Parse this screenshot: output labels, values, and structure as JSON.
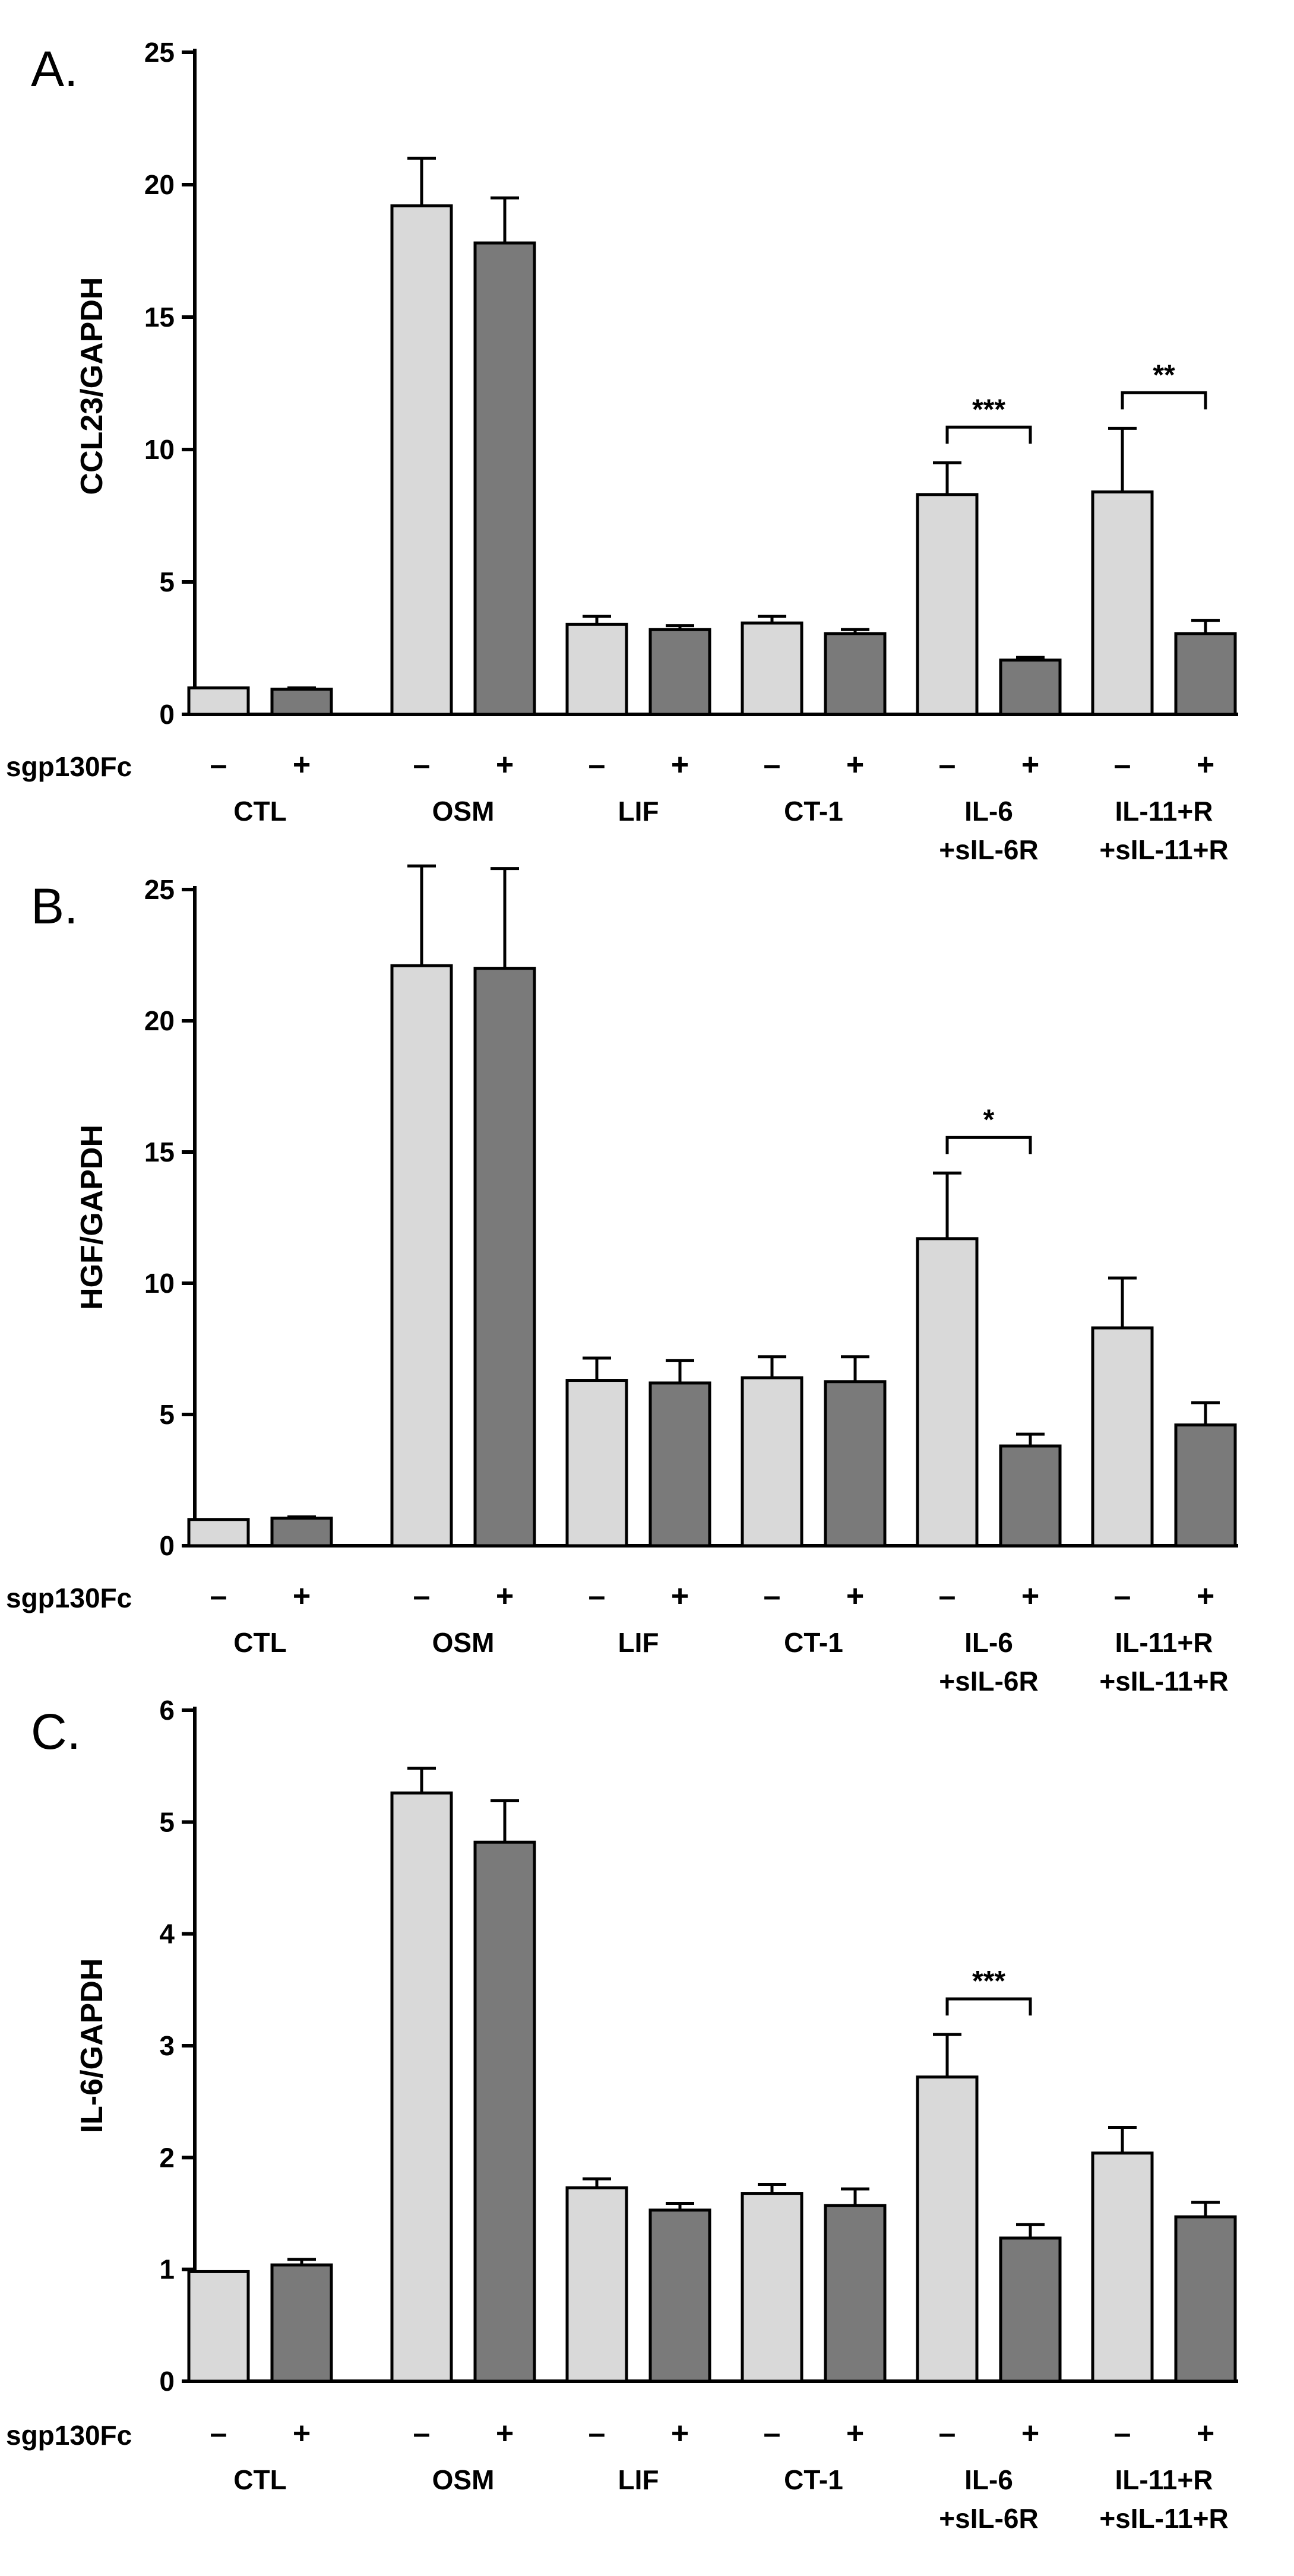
{
  "colors": {
    "minus_bar": "#d9d9d9",
    "plus_bar": "#7a7a7a",
    "stroke": "#000000",
    "background": "#ffffff"
  },
  "treatment_row_label": "sgp130Fc",
  "sign_labels": {
    "minus": "–",
    "plus": "+"
  },
  "chart_data": [
    {
      "type": "bar",
      "panel_label": "A.",
      "ylabel": "CCL23/GAPDH",
      "ylim": [
        0,
        25
      ],
      "yticks": [
        "0",
        "5",
        "10",
        "15",
        "20",
        "25"
      ],
      "groups": [
        {
          "label_lines": [
            "CTL"
          ],
          "minus": {
            "value": 1.0,
            "error": 0
          },
          "plus": {
            "value": 0.95,
            "error": 0.05
          }
        },
        {
          "label_lines": [
            "OSM"
          ],
          "minus": {
            "value": 19.2,
            "error": 1.8
          },
          "plus": {
            "value": 17.8,
            "error": 1.7
          }
        },
        {
          "label_lines": [
            "LIF"
          ],
          "minus": {
            "value": 3.4,
            "error": 0.3
          },
          "plus": {
            "value": 3.2,
            "error": 0.15
          }
        },
        {
          "label_lines": [
            "CT-1"
          ],
          "minus": {
            "value": 3.45,
            "error": 0.25
          },
          "plus": {
            "value": 3.05,
            "error": 0.15
          }
        },
        {
          "label_lines": [
            "IL-6",
            "+sIL-6R"
          ],
          "minus": {
            "value": 8.3,
            "error": 1.2
          },
          "plus": {
            "value": 2.05,
            "error": 0.1
          },
          "significance": "***"
        },
        {
          "label_lines": [
            "IL-11+R",
            "+sIL-11+R"
          ],
          "minus": {
            "value": 8.4,
            "error": 2.4
          },
          "plus": {
            "value": 3.05,
            "error": 0.5
          },
          "significance": "**"
        }
      ]
    },
    {
      "type": "bar",
      "panel_label": "B.",
      "ylabel": "HGF/GAPDH",
      "ylim": [
        0,
        25
      ],
      "yticks": [
        "0",
        "5",
        "10",
        "15",
        "20",
        "25"
      ],
      "groups": [
        {
          "label_lines": [
            "CTL"
          ],
          "minus": {
            "value": 1.0,
            "error": 0
          },
          "plus": {
            "value": 1.05,
            "error": 0.05
          }
        },
        {
          "label_lines": [
            "OSM"
          ],
          "minus": {
            "value": 22.1,
            "error": 3.8
          },
          "plus": {
            "value": 22.0,
            "error": 3.8
          }
        },
        {
          "label_lines": [
            "LIF"
          ],
          "minus": {
            "value": 6.3,
            "error": 0.85
          },
          "plus": {
            "value": 6.2,
            "error": 0.85
          }
        },
        {
          "label_lines": [
            "CT-1"
          ],
          "minus": {
            "value": 6.4,
            "error": 0.8
          },
          "plus": {
            "value": 6.25,
            "error": 0.95
          }
        },
        {
          "label_lines": [
            "IL-6",
            "+sIL-6R"
          ],
          "minus": {
            "value": 11.7,
            "error": 2.5
          },
          "plus": {
            "value": 3.8,
            "error": 0.45
          },
          "significance": "*"
        },
        {
          "label_lines": [
            "IL-11+R",
            "+sIL-11+R"
          ],
          "minus": {
            "value": 8.3,
            "error": 1.9
          },
          "plus": {
            "value": 4.6,
            "error": 0.85
          }
        }
      ]
    },
    {
      "type": "bar",
      "panel_label": "C.",
      "ylabel": "IL-6/GAPDH",
      "ylim": [
        0,
        6
      ],
      "yticks": [
        "0",
        "1",
        "2",
        "3",
        "4",
        "5",
        "6"
      ],
      "groups": [
        {
          "label_lines": [
            "CTL"
          ],
          "minus": {
            "value": 0.98,
            "error": 0
          },
          "plus": {
            "value": 1.04,
            "error": 0.05
          }
        },
        {
          "label_lines": [
            "OSM"
          ],
          "minus": {
            "value": 5.26,
            "error": 0.22
          },
          "plus": {
            "value": 4.82,
            "error": 0.37
          }
        },
        {
          "label_lines": [
            "LIF"
          ],
          "minus": {
            "value": 1.73,
            "error": 0.08
          },
          "plus": {
            "value": 1.53,
            "error": 0.06
          }
        },
        {
          "label_lines": [
            "CT-1"
          ],
          "minus": {
            "value": 1.68,
            "error": 0.08
          },
          "plus": {
            "value": 1.57,
            "error": 0.15
          }
        },
        {
          "label_lines": [
            "IL-6",
            "+sIL-6R"
          ],
          "minus": {
            "value": 2.72,
            "error": 0.38
          },
          "plus": {
            "value": 1.28,
            "error": 0.12
          },
          "significance": "***"
        },
        {
          "label_lines": [
            "IL-11+R",
            "+sIL-11+R"
          ],
          "minus": {
            "value": 2.04,
            "error": 0.23
          },
          "plus": {
            "value": 1.47,
            "error": 0.13
          }
        }
      ]
    }
  ]
}
